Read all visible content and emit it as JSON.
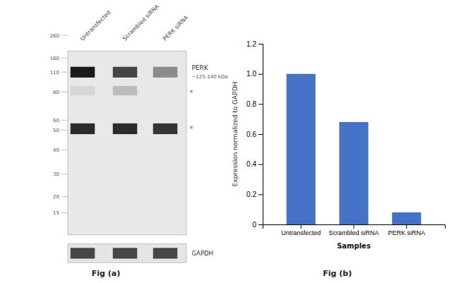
{
  "chart_data": [
    {
      "type": "blot",
      "title": "Fig (a)",
      "categories": [
        "Untransfected",
        "Scrambled siRNA",
        "PERK siRNA"
      ],
      "annotations": [
        "260",
        "160",
        "110",
        "80",
        "60",
        "50",
        "40",
        "30",
        "20",
        "15",
        "PERK",
        "~125-140 kDa",
        "*",
        "*",
        "GAPDH"
      ]
    },
    {
      "type": "bar",
      "title": "Fig (b)",
      "categories": [
        "Untransfected",
        "Scrambled siRNA",
        "PERK siRNA"
      ],
      "values": [
        1.0,
        0.68,
        0.08
      ],
      "color": "#4472C4",
      "xlabel": "Samples",
      "ylabel": "Expression normalized to GAPDH",
      "ylim": [
        0,
        1.2
      ],
      "yticks": [
        0,
        0.2,
        0.4,
        0.6,
        0.8,
        {
          "value": 1.0,
          "label": "1.0"
        },
        1.2
      ],
      "grid": false
    }
  ]
}
